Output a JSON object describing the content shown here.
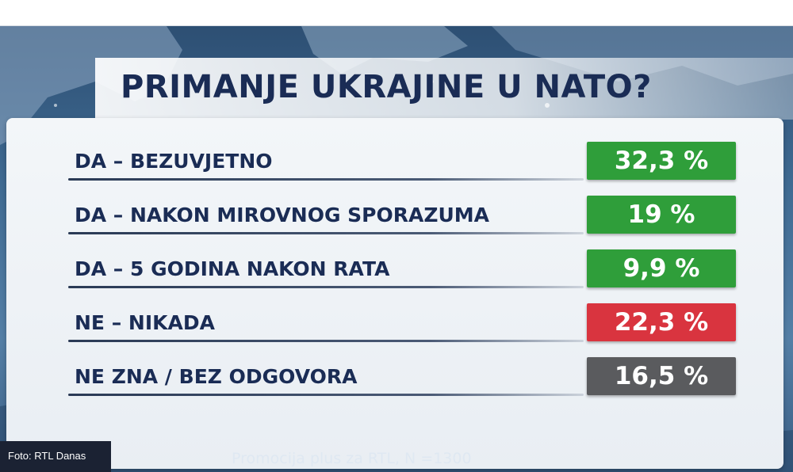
{
  "chart_data": {
    "type": "bar",
    "title": "PRIMANJE UKRAJINE U NATO?",
    "categories": [
      "DA – BEZUVJETNO",
      "DA – NAKON MIROVNOG SPORAZUMA",
      "DA – 5 GODINA NAKON RATA",
      "NE – NIKADA",
      "NE ZNA / BEZ ODGOVORA"
    ],
    "values": [
      32.3,
      19,
      9.9,
      22.3,
      16.5
    ],
    "value_labels": [
      "32,3 %",
      "19 %",
      "9,9 %",
      "22,3 %",
      "16,5 %"
    ],
    "colors": [
      "#2f9e3a",
      "#2f9e3a",
      "#2f9e3a",
      "#d9343f",
      "#5a5b5e"
    ],
    "unit": "%"
  },
  "credit": "Foto: RTL Danas",
  "source": "Promocija plus za RTL,  N =1300"
}
